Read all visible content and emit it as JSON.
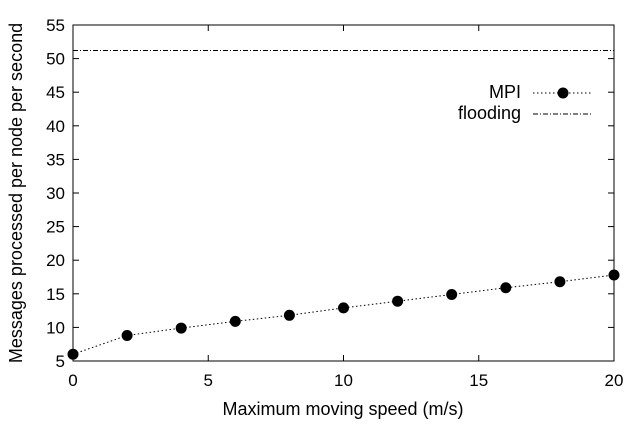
{
  "chart_data": {
    "type": "line",
    "title": "",
    "xlabel": "Maximum moving speed (m/s)",
    "ylabel": "Messages processed per node per second",
    "xlim": [
      0,
      20
    ],
    "ylim": [
      5,
      55
    ],
    "xticks": [
      0,
      5,
      10,
      15,
      20
    ],
    "yticks": [
      5,
      10,
      15,
      20,
      25,
      30,
      35,
      40,
      45,
      50,
      55
    ],
    "grid": false,
    "legend_position": "top-right",
    "series": [
      {
        "name": "MPI",
        "style": "dotted-line-with-circle-markers",
        "color": "#000000",
        "x": [
          0,
          2,
          4,
          6,
          8,
          10,
          12,
          14,
          16,
          18,
          20
        ],
        "y": [
          6.0,
          8.8,
          9.9,
          10.9,
          11.8,
          12.9,
          13.9,
          14.9,
          15.9,
          16.8,
          17.8
        ]
      },
      {
        "name": "flooding",
        "style": "dash-dot-line",
        "color": "#000000",
        "x": [
          0,
          20
        ],
        "y": [
          51.2,
          51.2
        ]
      }
    ]
  }
}
